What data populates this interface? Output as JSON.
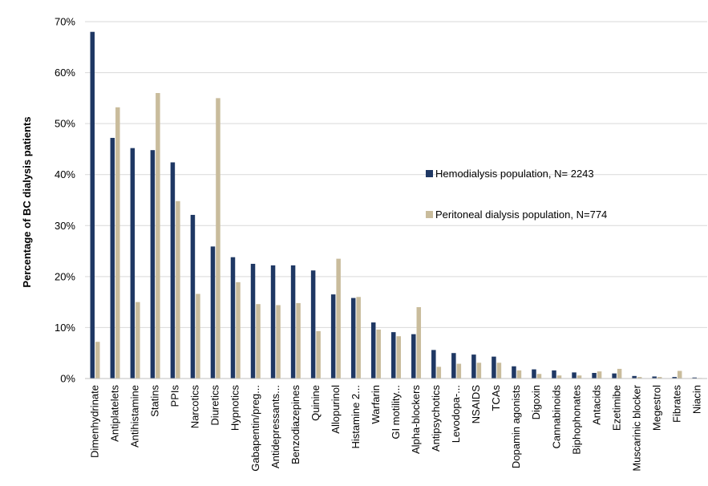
{
  "chart_data": {
    "type": "bar",
    "title": "",
    "xlabel": "",
    "ylabel": "Percentage of BC dialysis patients",
    "ylim": [
      0,
      70
    ],
    "y_ticks": [
      "0%",
      "10%",
      "20%",
      "30%",
      "40%",
      "50%",
      "60%",
      "70%"
    ],
    "grid": true,
    "legend_position": "right",
    "categories": [
      "Dimenhydrinate",
      "Antiplatelets",
      "Antihistamine",
      "Statins",
      "PPIs",
      "Narcotics",
      "Diuretics",
      "Hypnotics",
      "Gabapentin/preg...",
      "Antidepressants...",
      "Benzodiazepines",
      "Quinine",
      "Allopurinol",
      "Histamine 2...",
      "Warfarin",
      "GI motility...",
      "Alpha-blockers",
      "Antipsychotics",
      "Levodopa-...",
      "NSAIDS",
      "TCAs",
      "Dopamin agonists",
      "Digoxin",
      "Cannabinoids",
      "Biphophonates",
      "Antacids",
      "Ezetimibe",
      "Muscarinic blocker",
      "Megestrol",
      "Fibrates",
      "Niacin"
    ],
    "series": [
      {
        "name": "Hemodialysis population, N= 2243",
        "color": "#1f3864",
        "values": [
          68,
          47.2,
          45.2,
          44.8,
          42.4,
          32.1,
          25.9,
          23.8,
          22.5,
          22.2,
          22.2,
          21.2,
          16.5,
          15.8,
          11.0,
          9.1,
          8.7,
          5.6,
          5.0,
          4.7,
          4.3,
          2.4,
          1.8,
          1.6,
          1.2,
          1.1,
          1.0,
          0.5,
          0.4,
          0.3,
          0.2
        ]
      },
      {
        "name": "Peritoneal dialysis population, N=774",
        "color": "#c9bc9c",
        "values": [
          7.2,
          53.2,
          15.0,
          56.0,
          34.8,
          16.6,
          55.0,
          18.9,
          14.6,
          14.4,
          14.8,
          9.3,
          23.5,
          16.0,
          9.6,
          8.3,
          14.0,
          2.3,
          2.9,
          3.1,
          3.1,
          1.6,
          0.9,
          0.6,
          0.6,
          1.4,
          1.9,
          0.3,
          0.3,
          1.5,
          0.1
        ]
      }
    ]
  }
}
